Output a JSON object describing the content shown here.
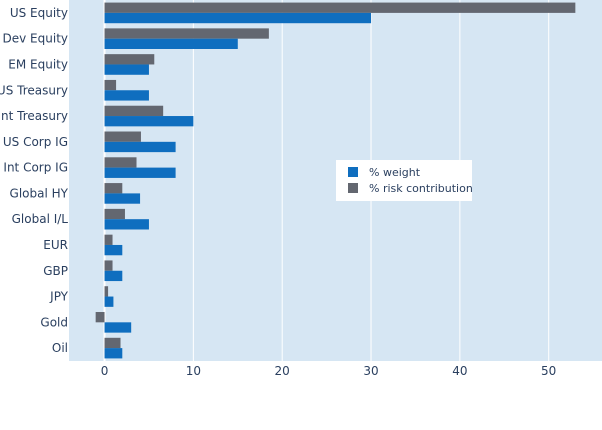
{
  "chart_data": {
    "type": "bar",
    "orientation": "horizontal",
    "categories": [
      "US Equity",
      "Dev Equity",
      "EM Equity",
      "US Treasury",
      "Int Treasury",
      "US Corp IG",
      "Int Corp IG",
      "Global HY",
      "Global I/L",
      "EUR",
      "GBP",
      "JPY",
      "Gold",
      "Oil"
    ],
    "series": [
      {
        "name": "% weight",
        "color": "#0f6ebf",
        "values": [
          30,
          15,
          5,
          5,
          10,
          8,
          8,
          4,
          5,
          2,
          2,
          1,
          3,
          2
        ]
      },
      {
        "name": "% risk contribution",
        "color": "#636770",
        "values": [
          53,
          18.5,
          5.6,
          1.3,
          6.6,
          4.1,
          3.6,
          2.0,
          2.3,
          0.9,
          0.9,
          0.4,
          -1.0,
          1.8
        ]
      }
    ],
    "xlim": [
      -4,
      56
    ],
    "xticks": [
      0,
      10,
      20,
      30,
      40,
      50
    ],
    "title": "",
    "xlabel": "",
    "ylabel": "",
    "grid": true,
    "legend": {
      "placement": "center-right"
    },
    "plot_background": "#d6e6f3",
    "grid_color": "#ffffff"
  }
}
